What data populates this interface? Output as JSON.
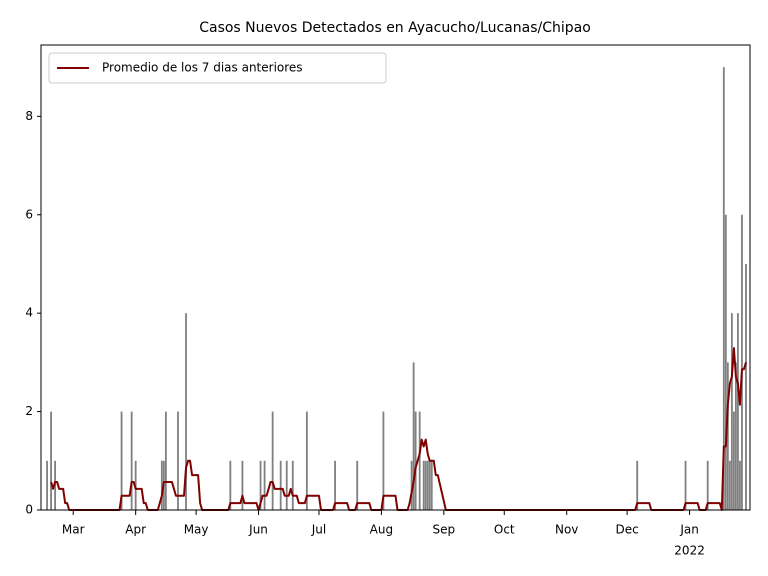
{
  "chart_data": {
    "type": "bar",
    "title": "Casos Nuevos Detectados en Ayacucho/Lucanas/Chipao",
    "xlim": [
      -16,
      336
    ],
    "ylim": [
      0,
      9.45
    ],
    "yticks": [
      0,
      2,
      4,
      6,
      8
    ],
    "xticks": [
      {
        "value": 0,
        "label": "Mar"
      },
      {
        "value": 31,
        "label": "Apr"
      },
      {
        "value": 61,
        "label": "May"
      },
      {
        "value": 92,
        "label": "Jun"
      },
      {
        "value": 122,
        "label": "Jul"
      },
      {
        "value": 153,
        "label": "Aug"
      },
      {
        "value": 184,
        "label": "Sep"
      },
      {
        "value": 214,
        "label": "Oct"
      },
      {
        "value": 245,
        "label": "Nov"
      },
      {
        "value": 275,
        "label": "Dec"
      },
      {
        "value": 306,
        "label": "Jan"
      }
    ],
    "x_year_label": "2022",
    "legend": "upper left",
    "series": [
      {
        "type": "bar",
        "color": "#808080",
        "x": [
          -13,
          -11,
          -9,
          24,
          29,
          31,
          44,
          45,
          46,
          52,
          56,
          78,
          84,
          93,
          95,
          99,
          103,
          106,
          109,
          116,
          130,
          141,
          154,
          168,
          169,
          170,
          172,
          174,
          175,
          176,
          177,
          178,
          280,
          304,
          315,
          323,
          324,
          325,
          326,
          327,
          328,
          329,
          330,
          331,
          332,
          334
        ],
        "values": [
          1,
          2,
          1,
          2,
          2,
          1,
          1,
          1,
          2,
          2,
          4,
          1,
          1,
          1,
          1,
          2,
          1,
          1,
          1,
          2,
          1,
          1,
          2,
          1,
          3,
          2,
          2,
          1,
          1,
          1,
          1,
          1,
          1,
          1,
          1,
          9,
          6,
          3,
          1,
          4,
          2,
          3,
          4,
          1,
          6,
          5
        ]
      },
      {
        "type": "line",
        "name": "Promedio de los 7 dias anteriores",
        "color": "#800000",
        "x": [
          -11,
          -10,
          -9,
          -8,
          -7,
          -5,
          -4,
          -3,
          -2,
          23,
          24,
          28,
          29,
          30,
          31,
          34,
          35,
          36,
          37,
          42,
          44,
          45,
          49,
          51,
          55,
          56,
          57,
          58,
          59,
          62,
          63,
          64,
          77,
          78,
          83,
          84,
          85,
          91,
          92,
          93,
          94,
          96,
          98,
          99,
          100,
          104,
          105,
          107,
          108,
          109,
          111,
          112,
          115,
          116,
          122,
          123,
          129,
          130,
          136,
          137,
          140,
          141,
          147,
          148,
          153,
          154,
          160,
          161,
          166,
          167,
          169,
          170,
          172,
          173,
          174,
          175,
          176,
          177,
          179,
          180,
          181,
          185,
          279,
          280,
          286,
          287,
          303,
          304,
          310,
          311,
          314,
          315,
          321,
          322,
          323,
          324,
          325,
          326,
          327,
          328,
          329,
          330,
          331,
          332,
          333,
          334
        ],
        "values": [
          0.57,
          0.43,
          0.57,
          0.57,
          0.43,
          0.43,
          0.14,
          0.14,
          0,
          0,
          0.29,
          0.29,
          0.57,
          0.57,
          0.43,
          0.43,
          0.14,
          0.14,
          0,
          0,
          0.29,
          0.57,
          0.57,
          0.29,
          0.29,
          0.86,
          1,
          1,
          0.71,
          0.71,
          0.14,
          0,
          0,
          0.14,
          0.14,
          0.29,
          0.14,
          0.14,
          0,
          0.14,
          0.29,
          0.29,
          0.57,
          0.57,
          0.43,
          0.43,
          0.29,
          0.29,
          0.43,
          0.29,
          0.29,
          0.14,
          0.14,
          0.29,
          0.29,
          0,
          0,
          0.14,
          0.14,
          0,
          0,
          0.14,
          0.14,
          0,
          0,
          0.29,
          0.29,
          0,
          0,
          0.14,
          0.57,
          0.86,
          1.14,
          1.43,
          1.29,
          1.43,
          1.14,
          1,
          1,
          0.71,
          0.71,
          0,
          0,
          0.14,
          0.14,
          0,
          0,
          0.14,
          0.14,
          0,
          0,
          0.14,
          0.14,
          0,
          1.29,
          1.29,
          2.14,
          2.57,
          2.71,
          3.29,
          2.71,
          2.57,
          2.14,
          2.86,
          2.86,
          3
        ]
      }
    ]
  }
}
